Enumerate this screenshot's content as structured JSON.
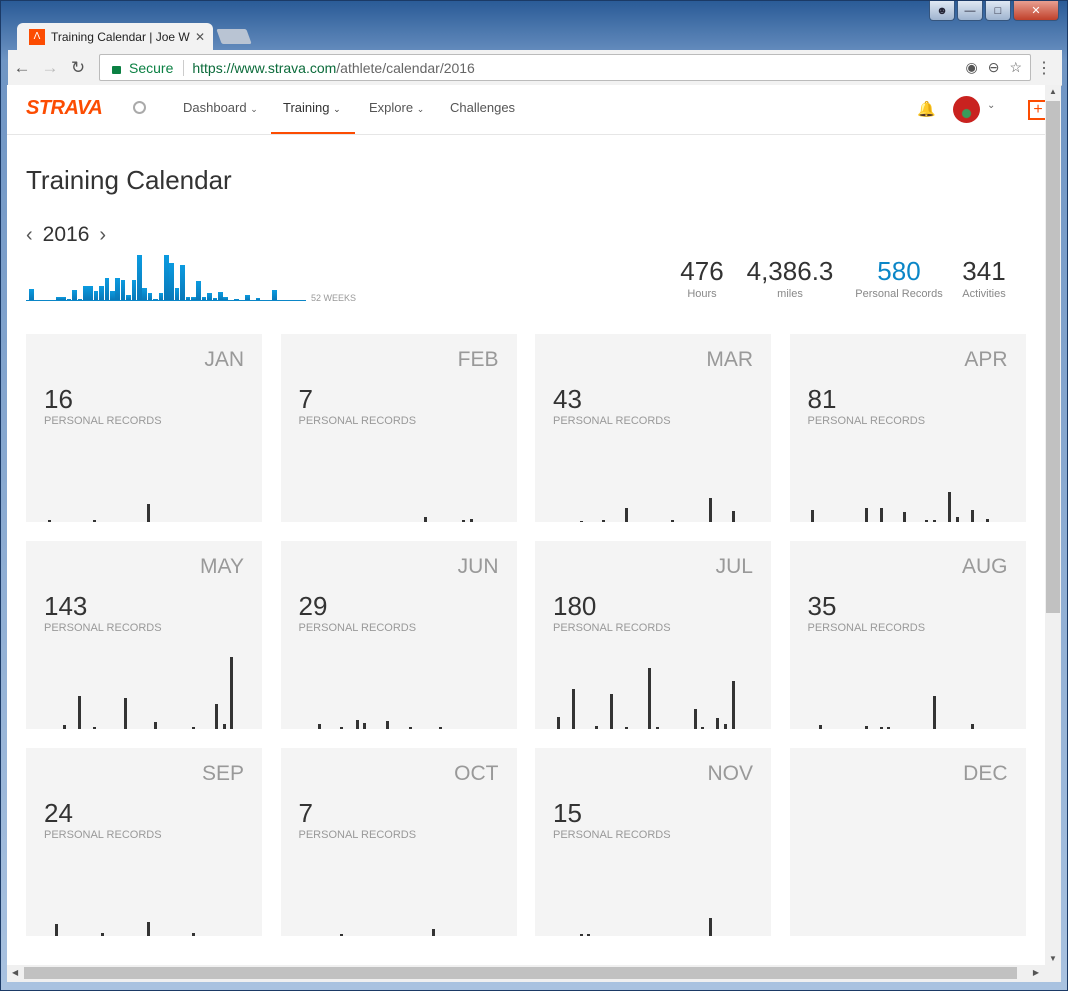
{
  "browser": {
    "tab_title": "Training Calendar | Joe W",
    "secure_label": "Secure",
    "url_host": "https://www.strava.com",
    "url_path": "/athlete/calendar/2016"
  },
  "nav": {
    "logo": "STRAVA",
    "items": [
      {
        "label": "Dashboard",
        "chevron": true
      },
      {
        "label": "Training",
        "chevron": true,
        "active": true
      },
      {
        "label": "Explore",
        "chevron": true
      },
      {
        "label": "Challenges",
        "chevron": false
      }
    ]
  },
  "page": {
    "title": "Training Calendar",
    "year": "2016",
    "weeks_label": "52 WEEKS"
  },
  "stats": [
    {
      "value": "476",
      "label": "Hours"
    },
    {
      "value": "4,386.3",
      "label": "miles"
    },
    {
      "value": "580",
      "label": "Personal Records",
      "accent": true
    },
    {
      "value": "341",
      "label": "Activities"
    }
  ],
  "colors": {
    "brand": "#fc4c02",
    "accent": "#0b86c7",
    "bars": "#333333"
  },
  "months": [
    {
      "name": "JAN",
      "prs": "16",
      "label": "PERSONAL RECORDS",
      "days": [
        [
          3,
          2
        ],
        [
          9,
          2
        ],
        [
          16,
          18
        ]
      ]
    },
    {
      "name": "FEB",
      "prs": "7",
      "label": "PERSONAL RECORDS",
      "days": [
        [
          19,
          5
        ],
        [
          24,
          2
        ],
        [
          25,
          3
        ]
      ]
    },
    {
      "name": "MAR",
      "prs": "43",
      "label": "PERSONAL RECORDS",
      "days": [
        [
          6,
          1
        ],
        [
          9,
          2
        ],
        [
          12,
          14
        ],
        [
          18,
          2
        ],
        [
          23,
          24
        ],
        [
          26,
          11
        ]
      ]
    },
    {
      "name": "APR",
      "prs": "81",
      "label": "PERSONAL RECORDS",
      "days": [
        [
          3,
          12
        ],
        [
          10,
          14
        ],
        [
          12,
          14
        ],
        [
          15,
          10
        ],
        [
          18,
          2
        ],
        [
          19,
          2
        ],
        [
          21,
          30
        ],
        [
          22,
          5
        ],
        [
          24,
          12
        ],
        [
          26,
          3
        ]
      ]
    },
    {
      "name": "MAY",
      "prs": "143",
      "label": "PERSONAL RECORDS",
      "days": [
        [
          5,
          4
        ],
        [
          7,
          33
        ],
        [
          9,
          2
        ],
        [
          13,
          31
        ],
        [
          17,
          7
        ],
        [
          22,
          2
        ],
        [
          25,
          25
        ],
        [
          26,
          5
        ],
        [
          27,
          72
        ]
      ]
    },
    {
      "name": "JUN",
      "prs": "29",
      "label": "PERSONAL RECORDS",
      "days": [
        [
          5,
          5
        ],
        [
          8,
          2
        ],
        [
          10,
          9
        ],
        [
          11,
          6
        ],
        [
          14,
          8
        ],
        [
          17,
          2
        ],
        [
          21,
          2
        ]
      ]
    },
    {
      "name": "JUL",
      "prs": "180",
      "label": "PERSONAL RECORDS",
      "days": [
        [
          3,
          12
        ],
        [
          5,
          40
        ],
        [
          8,
          3
        ],
        [
          10,
          35
        ],
        [
          12,
          2
        ],
        [
          15,
          61
        ],
        [
          16,
          2
        ],
        [
          21,
          20
        ],
        [
          22,
          2
        ],
        [
          24,
          11
        ],
        [
          25,
          5
        ],
        [
          26,
          48
        ]
      ]
    },
    {
      "name": "AUG",
      "prs": "35",
      "label": "PERSONAL RECORDS",
      "days": [
        [
          4,
          4
        ],
        [
          10,
          3
        ],
        [
          12,
          2
        ],
        [
          13,
          2
        ],
        [
          19,
          33
        ],
        [
          24,
          5
        ]
      ]
    },
    {
      "name": "SEP",
      "prs": "24",
      "label": "PERSONAL RECORDS",
      "days": [
        [
          4,
          12
        ],
        [
          10,
          3
        ],
        [
          16,
          14
        ],
        [
          22,
          3
        ]
      ]
    },
    {
      "name": "OCT",
      "prs": "7",
      "label": "PERSONAL RECORDS",
      "days": [
        [
          8,
          2
        ],
        [
          20,
          7
        ]
      ]
    },
    {
      "name": "NOV",
      "prs": "15",
      "label": "PERSONAL RECORDS",
      "days": [
        [
          6,
          2
        ],
        [
          7,
          2
        ],
        [
          23,
          18
        ]
      ]
    },
    {
      "name": "DEC",
      "prs": "",
      "label": "",
      "days": []
    }
  ],
  "chart_data": {
    "type": "bar",
    "xlabel": "52 WEEKS",
    "categories_count": 52,
    "values": [
      11,
      0,
      0,
      0,
      0,
      3,
      3,
      1,
      10,
      1,
      14,
      14,
      9,
      14,
      22,
      9,
      22,
      20,
      5,
      20,
      45,
      12,
      7,
      1,
      7,
      45,
      37,
      12,
      35,
      3,
      3,
      19,
      3,
      7,
      2,
      8,
      3,
      0,
      1,
      0,
      5,
      0,
      2,
      0,
      0,
      10,
      0,
      0,
      0,
      0,
      0,
      0
    ]
  }
}
